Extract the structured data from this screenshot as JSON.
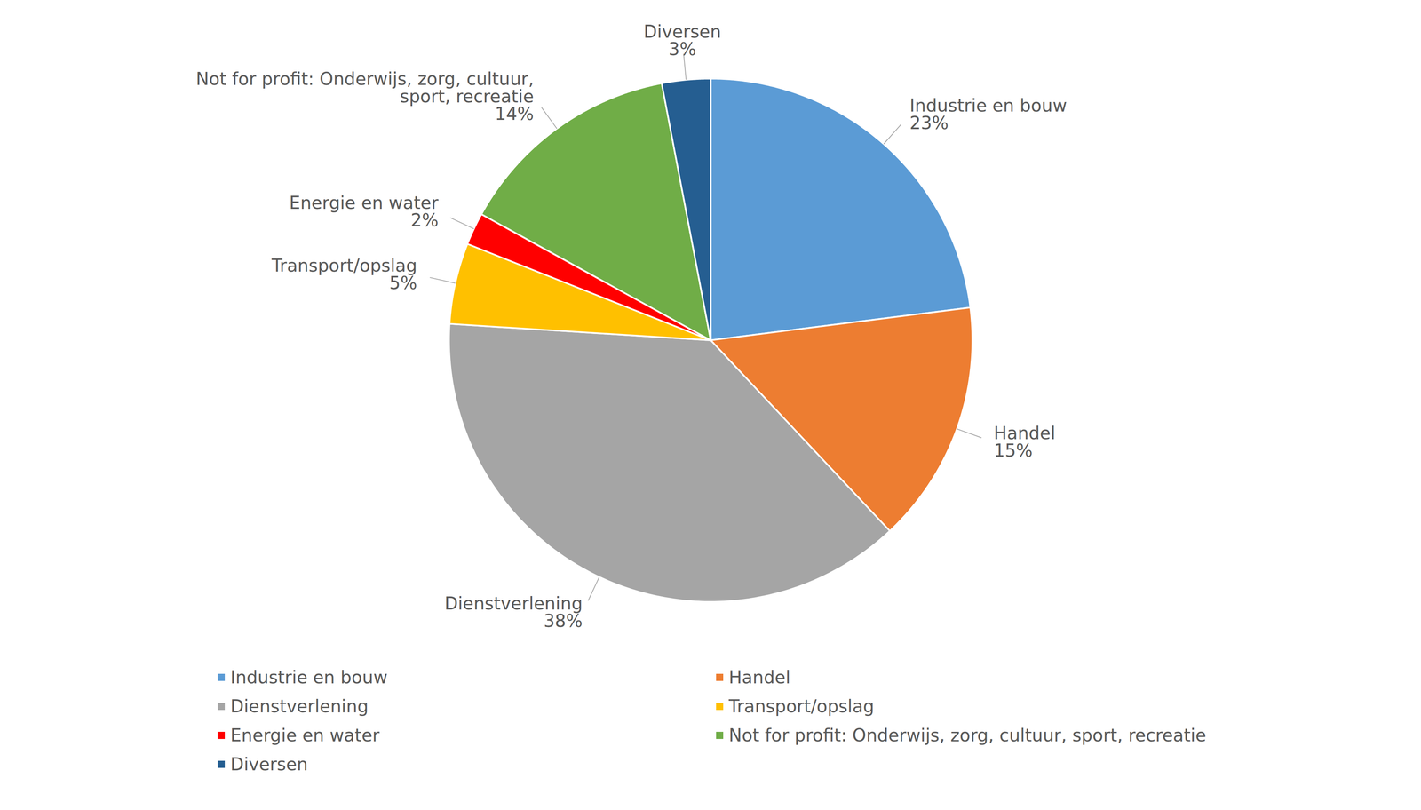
{
  "chart_data": {
    "type": "pie",
    "categories": [
      "Industrie en bouw",
      "Handel",
      "Dienstverlening",
      "Transport/opslag",
      "Energie en water",
      "Not for profit: Onderwijs, zorg, cultuur, sport, recreatie",
      "Diversen"
    ],
    "values": [
      23,
      15,
      38,
      5,
      2,
      14,
      3
    ],
    "value_labels": [
      "23%",
      "15%",
      "38%",
      "5%",
      "2%",
      "14%",
      "3%"
    ],
    "colors": [
      "#5b9bd5",
      "#ed7d31",
      "#a5a5a5",
      "#ffc000",
      "#ff0000",
      "#70ad47",
      "#255e91"
    ],
    "data_labels": true,
    "legend": "bottom"
  }
}
